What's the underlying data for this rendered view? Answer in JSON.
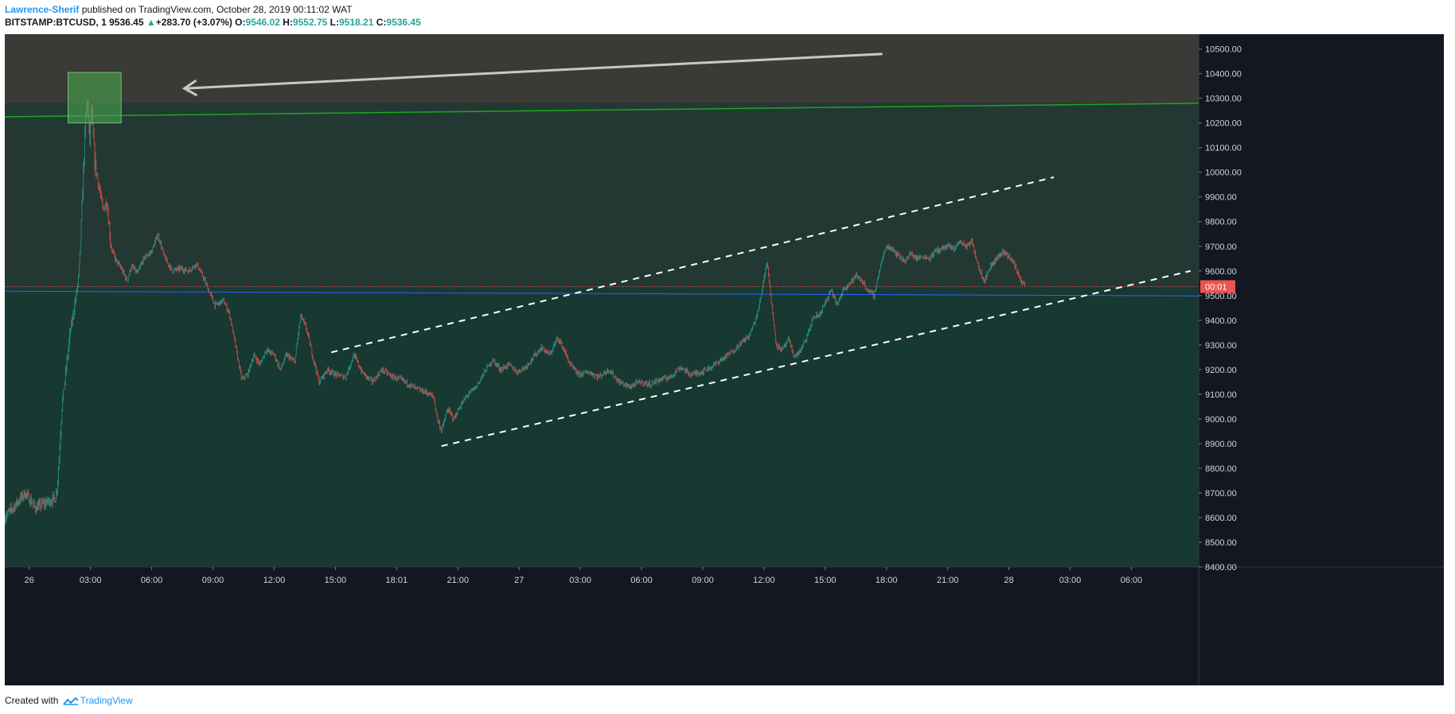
{
  "header": {
    "author": "Lawrence-Sherif",
    "published_text": "published on TradingView.com, October 28, 2019 00:11:02 WAT",
    "symbol": "BITSTAMP:BTCUSD, 1",
    "last_price": "9536.45",
    "up_arrow": "▲",
    "change": "+283.70 (+3.07%)",
    "open_label": "O:",
    "open_value": "9546.02",
    "high_label": "H:",
    "high_value": "9552.75",
    "low_label": "L:",
    "low_value": "9518.21",
    "close_label": "C:",
    "close_value": "9536.45"
  },
  "footer": {
    "created_with": "Created with",
    "brand": "TradingView"
  },
  "colors": {
    "up": "#26a69a",
    "down": "#ef5350",
    "background": "#131722",
    "zone_top": "#3a3a36",
    "zone_mid": "#233833",
    "zone_bottom": "#183832",
    "green_line": "#1fa51f",
    "blue_line": "#2962ff",
    "price_badge": "#ef5350",
    "link": "#2196f3"
  },
  "chart_data": {
    "type": "candlestick",
    "symbol": "BITSTAMP:BTCUSD",
    "interval": "1",
    "ylim": [
      8400,
      10560
    ],
    "y_ticks": [
      8400,
      8500,
      8600,
      8700,
      8800,
      8900,
      9000,
      9100,
      9200,
      9300,
      9400,
      9500,
      9600,
      9700,
      9800,
      9900,
      10000,
      10100,
      10200,
      10300,
      10400,
      10500
    ],
    "y_tick_labels": [
      "8400.00",
      "8500.00",
      "8600.00",
      "8700.00",
      "8800.00",
      "8900.00",
      "9000.00",
      "9100.00",
      "9200.00",
      "9300.00",
      "9400.00",
      "9500.00",
      "9600.00",
      "9700.00",
      "9800.00",
      "9900.00",
      "10000.00",
      "10100.00",
      "10200.00",
      "10300.00",
      "10400.00",
      "10500.00"
    ],
    "time_range_hours": [
      -0.4,
      31.3
    ],
    "x_ticks": [
      {
        "t": 0,
        "label": "26"
      },
      {
        "t": 3,
        "label": "03:00"
      },
      {
        "t": 6,
        "label": "06:00"
      },
      {
        "t": 9,
        "label": "09:00"
      },
      {
        "t": 12,
        "label": "12:00"
      },
      {
        "t": 15,
        "label": "15:00"
      },
      {
        "t": 18,
        "label": "18:01"
      },
      {
        "t": 21,
        "label": "21:00"
      },
      {
        "t": 24,
        "label": "27"
      },
      {
        "t": 27,
        "label": "03:00"
      },
      {
        "t": 30,
        "label": "06:00"
      },
      {
        "t": 33,
        "label": "09:00"
      },
      {
        "t": 36,
        "label": "12:00"
      },
      {
        "t": 39,
        "label": "15:00"
      },
      {
        "t": 42,
        "label": "18:00"
      },
      {
        "t": 45,
        "label": "21:00"
      },
      {
        "t": 48,
        "label": "28"
      },
      {
        "t": 51,
        "label": "03:00"
      },
      {
        "t": 54,
        "label": "06:00"
      }
    ],
    "x_domain_hours": [
      -1.2,
      57.3
    ],
    "price_path": [
      {
        "t": -1.2,
        "p": 8600
      },
      {
        "t": -0.6,
        "p": 8660
      },
      {
        "t": -0.2,
        "p": 8700
      },
      {
        "t": 0.3,
        "p": 8640
      },
      {
        "t": 0.8,
        "p": 8660
      },
      {
        "t": 1.3,
        "p": 8680
      },
      {
        "t": 1.4,
        "p": 8760
      },
      {
        "t": 1.5,
        "p": 8900
      },
      {
        "t": 1.6,
        "p": 9050
      },
      {
        "t": 1.8,
        "p": 9200
      },
      {
        "t": 2.0,
        "p": 9350
      },
      {
        "t": 2.2,
        "p": 9450
      },
      {
        "t": 2.4,
        "p": 9560
      },
      {
        "t": 2.5,
        "p": 9700
      },
      {
        "t": 2.6,
        "p": 9900
      },
      {
        "t": 2.75,
        "p": 10200
      },
      {
        "t": 2.85,
        "p": 10300
      },
      {
        "t": 2.95,
        "p": 10120
      },
      {
        "t": 3.05,
        "p": 10250
      },
      {
        "t": 3.2,
        "p": 10050
      },
      {
        "t": 3.4,
        "p": 9950
      },
      {
        "t": 3.6,
        "p": 9850
      },
      {
        "t": 3.8,
        "p": 9880
      },
      {
        "t": 4.0,
        "p": 9700
      },
      {
        "t": 4.2,
        "p": 9650
      },
      {
        "t": 4.5,
        "p": 9610
      },
      {
        "t": 4.8,
        "p": 9560
      },
      {
        "t": 5.0,
        "p": 9620
      },
      {
        "t": 5.3,
        "p": 9590
      },
      {
        "t": 5.6,
        "p": 9650
      },
      {
        "t": 6.0,
        "p": 9680
      },
      {
        "t": 6.3,
        "p": 9750
      },
      {
        "t": 6.6,
        "p": 9660
      },
      {
        "t": 7.0,
        "p": 9600
      },
      {
        "t": 7.4,
        "p": 9610
      },
      {
        "t": 7.8,
        "p": 9600
      },
      {
        "t": 8.2,
        "p": 9630
      },
      {
        "t": 8.6,
        "p": 9560
      },
      {
        "t": 8.8,
        "p": 9520
      },
      {
        "t": 9.1,
        "p": 9460
      },
      {
        "t": 9.5,
        "p": 9480
      },
      {
        "t": 9.8,
        "p": 9430
      },
      {
        "t": 10.1,
        "p": 9300
      },
      {
        "t": 10.4,
        "p": 9160
      },
      {
        "t": 10.7,
        "p": 9180
      },
      {
        "t": 11.0,
        "p": 9260
      },
      {
        "t": 11.3,
        "p": 9220
      },
      {
        "t": 11.6,
        "p": 9280
      },
      {
        "t": 12.0,
        "p": 9260
      },
      {
        "t": 12.3,
        "p": 9200
      },
      {
        "t": 12.6,
        "p": 9260
      },
      {
        "t": 13.0,
        "p": 9230
      },
      {
        "t": 13.3,
        "p": 9420
      },
      {
        "t": 13.6,
        "p": 9360
      },
      {
        "t": 13.9,
        "p": 9250
      },
      {
        "t": 14.2,
        "p": 9150
      },
      {
        "t": 14.6,
        "p": 9200
      },
      {
        "t": 15.0,
        "p": 9180
      },
      {
        "t": 15.5,
        "p": 9170
      },
      {
        "t": 15.9,
        "p": 9260
      },
      {
        "t": 16.3,
        "p": 9190
      },
      {
        "t": 16.8,
        "p": 9150
      },
      {
        "t": 17.3,
        "p": 9200
      },
      {
        "t": 17.8,
        "p": 9170
      },
      {
        "t": 18.2,
        "p": 9160
      },
      {
        "t": 18.6,
        "p": 9140
      },
      {
        "t": 19.0,
        "p": 9120
      },
      {
        "t": 19.4,
        "p": 9110
      },
      {
        "t": 19.8,
        "p": 9090
      },
      {
        "t": 20.0,
        "p": 9000
      },
      {
        "t": 20.2,
        "p": 8950
      },
      {
        "t": 20.5,
        "p": 9040
      },
      {
        "t": 20.8,
        "p": 9000
      },
      {
        "t": 21.1,
        "p": 9050
      },
      {
        "t": 21.5,
        "p": 9100
      },
      {
        "t": 21.9,
        "p": 9130
      },
      {
        "t": 22.3,
        "p": 9190
      },
      {
        "t": 22.7,
        "p": 9240
      },
      {
        "t": 23.1,
        "p": 9200
      },
      {
        "t": 23.5,
        "p": 9220
      },
      {
        "t": 23.9,
        "p": 9190
      },
      {
        "t": 24.3,
        "p": 9210
      },
      {
        "t": 24.7,
        "p": 9250
      },
      {
        "t": 25.1,
        "p": 9290
      },
      {
        "t": 25.5,
        "p": 9260
      },
      {
        "t": 25.9,
        "p": 9330
      },
      {
        "t": 26.2,
        "p": 9280
      },
      {
        "t": 26.5,
        "p": 9220
      },
      {
        "t": 26.9,
        "p": 9180
      },
      {
        "t": 27.4,
        "p": 9190
      },
      {
        "t": 27.9,
        "p": 9170
      },
      {
        "t": 28.4,
        "p": 9200
      },
      {
        "t": 28.9,
        "p": 9150
      },
      {
        "t": 29.4,
        "p": 9130
      },
      {
        "t": 29.9,
        "p": 9150
      },
      {
        "t": 30.4,
        "p": 9140
      },
      {
        "t": 30.9,
        "p": 9160
      },
      {
        "t": 31.4,
        "p": 9170
      },
      {
        "t": 31.9,
        "p": 9210
      },
      {
        "t": 32.4,
        "p": 9180
      },
      {
        "t": 32.9,
        "p": 9190
      },
      {
        "t": 33.4,
        "p": 9210
      },
      {
        "t": 33.9,
        "p": 9240
      },
      {
        "t": 34.4,
        "p": 9270
      },
      {
        "t": 34.9,
        "p": 9310
      },
      {
        "t": 35.3,
        "p": 9340
      },
      {
        "t": 35.7,
        "p": 9430
      },
      {
        "t": 35.95,
        "p": 9550
      },
      {
        "t": 36.15,
        "p": 9640
      },
      {
        "t": 36.35,
        "p": 9480
      },
      {
        "t": 36.6,
        "p": 9300
      },
      {
        "t": 36.9,
        "p": 9280
      },
      {
        "t": 37.2,
        "p": 9320
      },
      {
        "t": 37.5,
        "p": 9250
      },
      {
        "t": 37.8,
        "p": 9280
      },
      {
        "t": 38.1,
        "p": 9330
      },
      {
        "t": 38.4,
        "p": 9410
      },
      {
        "t": 38.7,
        "p": 9420
      },
      {
        "t": 39.0,
        "p": 9470
      },
      {
        "t": 39.3,
        "p": 9520
      },
      {
        "t": 39.6,
        "p": 9460
      },
      {
        "t": 39.9,
        "p": 9530
      },
      {
        "t": 40.2,
        "p": 9550
      },
      {
        "t": 40.5,
        "p": 9580
      },
      {
        "t": 40.8,
        "p": 9560
      },
      {
        "t": 41.1,
        "p": 9520
      },
      {
        "t": 41.4,
        "p": 9500
      },
      {
        "t": 41.7,
        "p": 9620
      },
      {
        "t": 42.0,
        "p": 9700
      },
      {
        "t": 42.3,
        "p": 9690
      },
      {
        "t": 42.6,
        "p": 9660
      },
      {
        "t": 42.9,
        "p": 9640
      },
      {
        "t": 43.2,
        "p": 9670
      },
      {
        "t": 43.5,
        "p": 9650
      },
      {
        "t": 43.8,
        "p": 9660
      },
      {
        "t": 44.1,
        "p": 9650
      },
      {
        "t": 44.4,
        "p": 9680
      },
      {
        "t": 44.7,
        "p": 9690
      },
      {
        "t": 45.0,
        "p": 9700
      },
      {
        "t": 45.3,
        "p": 9690
      },
      {
        "t": 45.6,
        "p": 9720
      },
      {
        "t": 45.9,
        "p": 9700
      },
      {
        "t": 46.2,
        "p": 9720
      },
      {
        "t": 46.5,
        "p": 9620
      },
      {
        "t": 46.8,
        "p": 9560
      },
      {
        "t": 47.1,
        "p": 9620
      },
      {
        "t": 47.4,
        "p": 9650
      },
      {
        "t": 47.7,
        "p": 9680
      },
      {
        "t": 48.0,
        "p": 9660
      },
      {
        "t": 48.3,
        "p": 9620
      },
      {
        "t": 48.6,
        "p": 9560
      },
      {
        "t": 48.8,
        "p": 9536
      }
    ],
    "last_price": 9536.45,
    "last_price_label": "00:01",
    "horizontal_line": 9518,
    "resistance_line": {
      "t1": -1.2,
      "p1": 10225,
      "t2": 57.3,
      "p2": 10280
    },
    "channel_upper": {
      "t1": 14.8,
      "p1": 9270,
      "t2": 50.2,
      "p2": 9980
    },
    "channel_lower": {
      "t1": 20.2,
      "p1": 8890,
      "t2": 56.9,
      "p2": 9600
    },
    "highlight_box": {
      "t1": 1.9,
      "t2": 4.5,
      "p1": 10200,
      "p2": 10405
    },
    "arrow": {
      "from_t": 41.8,
      "from_p": 10480,
      "to_t": 7.6,
      "to_p": 10340
    },
    "zones": [
      {
        "from": 10280,
        "to": 10560
      },
      {
        "from": 9530,
        "to": 10280
      },
      {
        "from": 8400,
        "to": 9530
      }
    ]
  }
}
